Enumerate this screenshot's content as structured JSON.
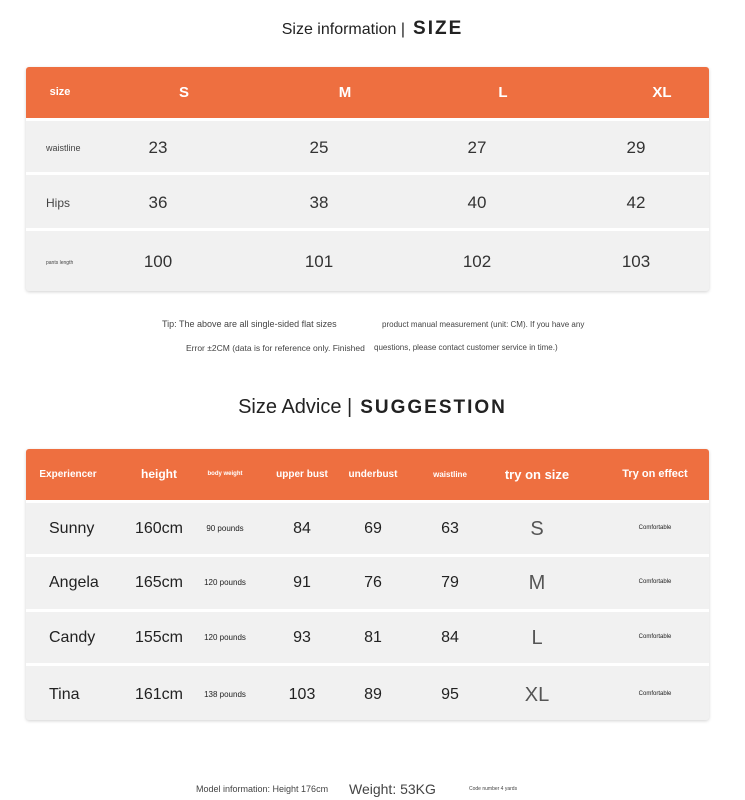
{
  "size_section": {
    "title_cn": "Size information |",
    "title_en": "SIZE",
    "header": [
      "size",
      "S",
      "M",
      "L",
      "XL"
    ],
    "rows": [
      {
        "label": "waistline",
        "values": [
          "23",
          "25",
          "27",
          "29"
        ]
      },
      {
        "label": "Hips",
        "values": [
          "36",
          "38",
          "40",
          "42"
        ]
      },
      {
        "label": "pants length",
        "values": [
          "100",
          "101",
          "102",
          "103"
        ]
      }
    ],
    "tips": [
      "Tip: The above are all single-sided flat sizes",
      "product manual measurement (unit: CM). If you have any",
      "Error ±2CM (data is for reference only. Finished",
      "questions, please contact customer service in time.)"
    ]
  },
  "advice_section": {
    "title_cn": "Size Advice |",
    "title_en": "SUGGESTION",
    "header": [
      "Experiencer",
      "height",
      "body weight",
      "upper bust",
      "underbust",
      "waistline",
      "try on size",
      "Try on effect"
    ],
    "rows": [
      [
        "Sunny",
        "160cm",
        "90 pounds",
        "84",
        "69",
        "63",
        "S",
        "Comfortable"
      ],
      [
        "Angela",
        "165cm",
        "120 pounds",
        "91",
        "76",
        "79",
        "M",
        "Comfortable"
      ],
      [
        "Candy",
        "155cm",
        "120 pounds",
        "93",
        "81",
        "84",
        "L",
        "Comfortable"
      ],
      [
        "Tina",
        "161cm",
        "138 pounds",
        "103",
        "89",
        "95",
        "XL",
        "Comfortable"
      ]
    ]
  },
  "model_info": {
    "height": "Model information: Height 176cm",
    "weight": "Weight: 53KG",
    "code": "Code number 4 yards"
  },
  "colors": {
    "header": "#ee6f40",
    "row": "#f1f1f1"
  }
}
